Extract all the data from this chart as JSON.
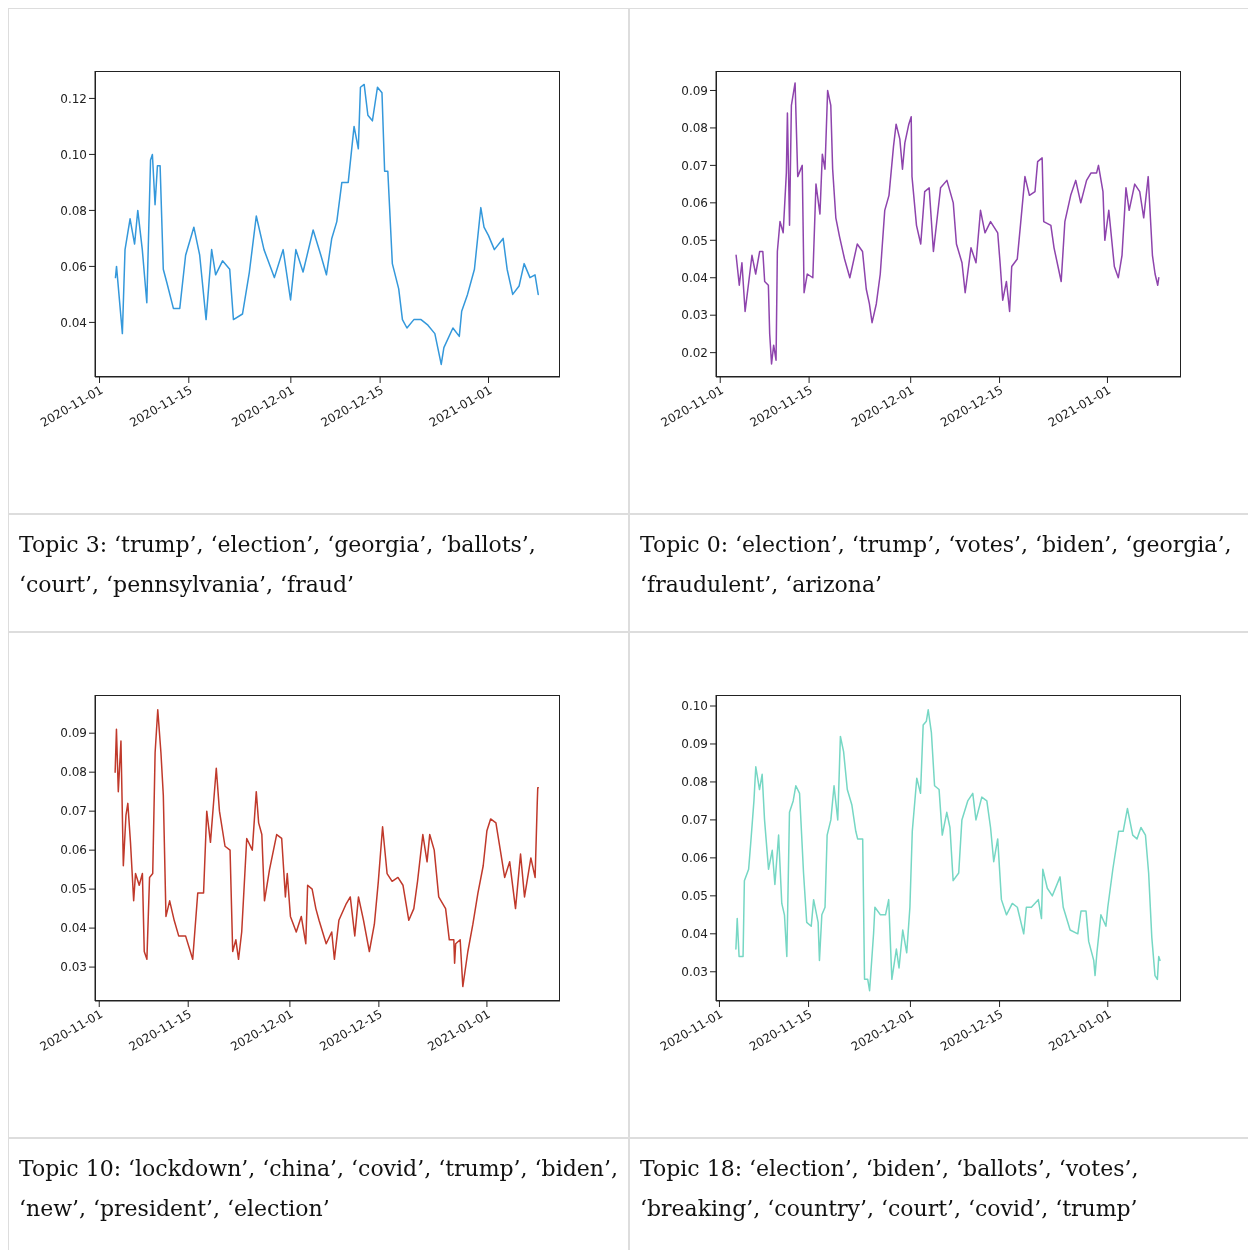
{
  "chart_data": [
    {
      "type": "line",
      "annotations": [
        "Topic 3: ‘trump’, ‘election’, ‘georgia’, ‘ballots’, ‘court’, ‘pennsylvania’, ‘fraud’"
      ],
      "xlim": [
        "2020-10-31T07:00",
        "2021-01-12T05:00"
      ],
      "xticks": [
        "2020-11-01",
        "2020-11-15",
        "2020-12-01",
        "2020-12-15",
        "2021-01-01"
      ],
      "ylim": [
        0.0205,
        0.1298
      ],
      "yticks": [
        0.04,
        0.06,
        0.08,
        {
          "value": 0.1,
          "label": "0.10"
        },
        0.12
      ],
      "x": [
        "2020-11-03T12:00",
        "2020-11-03T16:00",
        "2020-11-04T14:00",
        "2020-11-05T00:00",
        "2020-11-05T19:00",
        "2020-11-06T12:00",
        "2020-11-07T00:00",
        "2020-11-07T17:00",
        "2020-11-08T10:00",
        "2020-11-09T00:00",
        "2020-11-09T07:00",
        "2020-11-09T17:00",
        "2020-11-10T02:00",
        "2020-11-10T12:00",
        "2020-11-11T00:00",
        "2020-11-11T14:00",
        "2020-11-12T14:00",
        "2020-11-13T14:00",
        "2020-11-14T12:00",
        "2020-11-15T19:00",
        "2020-11-16T17:00",
        "2020-11-17T17:00",
        "2020-11-18T14:00",
        "2020-11-19T05:00",
        "2020-11-20T07:00",
        "2020-11-21T10:00",
        "2020-11-22T00:00",
        "2020-11-23T10:00",
        "2020-11-24T12:00",
        "2020-11-25T14:00",
        "2020-11-26T19:00",
        "2020-11-28T10:00",
        "2020-11-29T19:00",
        "2020-11-30T23:00",
        "2020-12-01T19:00",
        "2020-12-02T22:00",
        "2020-12-04T12:00",
        "2020-12-05T17:00",
        "2020-12-06T14:00",
        "2020-12-07T10:00",
        "2020-12-08T05:00",
        "2020-12-09T00:00",
        "2020-12-10T00:00",
        "2020-12-10T22:00",
        "2020-12-11T14:00",
        "2020-12-11T22:00",
        "2020-12-12T12:00",
        "2020-12-13T02:00",
        "2020-12-13T19:00",
        "2020-12-14T14:00",
        "2020-12-15T07:00",
        "2020-12-15T17:00",
        "2020-12-16T05:00",
        "2020-12-16T22:00",
        "2020-12-17T22:00",
        "2020-12-18T12:00",
        "2020-12-19T05:00",
        "2020-12-20T07:00",
        "2020-12-21T10:00",
        "2020-12-22T12:00",
        "2020-12-23T14:00",
        "2020-12-24T14:00",
        "2020-12-25T00:00",
        "2020-12-26T10:00",
        "2020-12-27T10:00",
        "2020-12-27T19:00",
        "2020-12-28T17:00",
        "2020-12-29T19:00",
        "2020-12-30T19:00",
        "2020-12-31T07:00",
        "2021-01-01T00:00",
        "2021-01-01T22:00",
        "2021-01-03T07:00",
        "2021-01-03T22:00",
        "2021-01-04T19:00",
        "2021-01-05T19:00",
        "2021-01-06T14:00",
        "2021-01-07T12:00",
        "2021-01-08T07:00",
        "2021-01-08T19:00"
      ],
      "series": [
        {
          "color": "#3498db",
          "values": [
            0.056,
            0.06,
            0.036,
            0.066,
            0.077,
            0.068,
            0.08,
            0.066,
            0.047,
            0.098,
            0.1,
            0.082,
            0.096,
            0.096,
            0.059,
            0.054,
            0.045,
            0.045,
            0.064,
            0.074,
            0.064,
            0.041,
            0.066,
            0.057,
            0.062,
            0.059,
            0.041,
            0.043,
            0.058,
            0.078,
            0.066,
            0.056,
            0.066,
            0.048,
            0.066,
            0.058,
            0.073,
            0.064,
            0.057,
            0.07,
            0.076,
            0.09,
            0.09,
            0.11,
            0.102,
            0.124,
            0.125,
            0.114,
            0.112,
            0.124,
            0.122,
            0.094,
            0.094,
            0.061,
            0.052,
            0.041,
            0.038,
            0.041,
            0.041,
            0.039,
            0.036,
            0.025,
            0.031,
            0.038,
            0.035,
            0.044,
            0.05,
            0.059,
            0.081,
            0.074,
            0.071,
            0.066,
            0.07,
            0.059,
            0.05,
            0.053,
            0.061,
            0.056,
            0.057,
            0.05
          ]
        }
      ]
    },
    {
      "type": "line",
      "annotations": [
        "Topic 0: ‘election’, ‘trump’, ‘votes’, ‘biden’, ‘georgia’, ‘fraudulent’, ‘arizona’"
      ],
      "xlim": [
        "2020-10-31T08:00",
        "2021-01-12T14:00"
      ],
      "xticks": [
        "2020-11-01",
        "2020-11-15",
        "2020-12-01",
        "2020-12-15",
        "2021-01-01"
      ],
      "ylim": [
        0.0135,
        0.0952
      ],
      "yticks": [
        0.02,
        0.03,
        0.04,
        0.05,
        0.06,
        0.07,
        0.08,
        0.09
      ],
      "x": [
        "2020-11-03T12:00",
        "2020-11-04T00:00",
        "2020-11-04T10:00",
        "2020-11-04T22:00",
        "2020-11-05T12:00",
        "2020-11-06T00:00",
        "2020-11-06T14:00",
        "2020-11-07T05:00",
        "2020-11-07T17:00",
        "2020-11-08T00:00",
        "2020-11-08T14:00",
        "2020-11-08T19:00",
        "2020-11-09T02:00",
        "2020-11-09T10:00",
        "2020-11-09T19:00",
        "2020-11-10T00:00",
        "2020-11-10T10:00",
        "2020-11-10T22:00",
        "2020-11-11T10:00",
        "2020-11-11T14:00",
        "2020-11-11T22:00",
        "2020-11-12T05:00",
        "2020-11-12T19:00",
        "2020-11-13T05:00",
        "2020-11-13T22:00",
        "2020-11-14T05:00",
        "2020-11-14T17:00",
        "2020-11-15T14:00",
        "2020-11-16T02:00",
        "2020-11-16T17:00",
        "2020-11-17T02:00",
        "2020-11-17T12:00",
        "2020-11-17T22:00",
        "2020-11-18T10:00",
        "2020-11-18T17:00",
        "2020-11-19T05:00",
        "2020-11-19T19:00",
        "2020-11-20T14:00",
        "2020-11-21T10:00",
        "2020-11-22T14:00",
        "2020-11-23T10:00",
        "2020-11-24T00:00",
        "2020-11-24T12:00",
        "2020-11-24T22:00",
        "2020-11-25T14:00",
        "2020-11-26T05:00",
        "2020-11-26T22:00",
        "2020-11-27T14:00",
        "2020-11-28T07:00",
        "2020-11-28T17:00",
        "2020-11-29T07:00",
        "2020-11-29T17:00",
        "2020-11-30T02:00",
        "2020-11-30T17:00",
        "2020-12-01T02:00",
        "2020-12-01T05:00",
        "2020-12-01T22:00",
        "2020-12-02T14:00",
        "2020-12-03T05:00",
        "2020-12-03T22:00",
        "2020-12-04T14:00",
        "2020-12-05T17:00",
        "2020-12-06T17:00",
        "2020-12-07T17:00",
        "2020-12-08T05:00",
        "2020-12-09T02:00",
        "2020-12-09T14:00",
        "2020-12-10T12:00",
        "2020-12-11T07:00",
        "2020-12-12T00:00",
        "2020-12-12T17:00",
        "2020-12-13T14:00",
        "2020-12-14T17:00",
        "2020-12-15T02:00",
        "2020-12-15T12:00",
        "2020-12-16T02:00",
        "2020-12-16T14:00",
        "2020-12-16T22:00",
        "2020-12-17T19:00",
        "2020-12-18T07:00",
        "2020-12-19T00:00",
        "2020-12-19T17:00",
        "2020-12-20T14:00",
        "2020-12-21T00:00",
        "2020-12-21T17:00",
        "2020-12-21T23:00",
        "2020-12-23T02:00",
        "2020-12-23T14:00",
        "2020-12-24T17:00",
        "2020-12-25T07:00",
        "2020-12-26T05:00",
        "2020-12-27T00:00",
        "2020-12-27T19:00",
        "2020-12-28T17:00",
        "2020-12-29T10:00",
        "2020-12-30T07:00",
        "2020-12-30T14:00",
        "2020-12-31T07:00",
        "2020-12-31T14:00",
        "2021-01-01T05:00",
        "2021-01-02T02:00",
        "2021-01-02T17:00",
        "2021-01-03T07:00",
        "2021-01-03T22:00",
        "2021-01-04T10:00",
        "2021-01-05T07:00",
        "2021-01-06T02:00",
        "2021-01-06T17:00",
        "2021-01-07T10:00",
        "2021-01-08T02:00",
        "2021-01-08T12:00",
        "2021-01-08T22:00",
        "2021-01-09T02:00"
      ],
      "series": [
        {
          "color": "#8e44ad",
          "values": [
            0.046,
            0.038,
            0.044,
            0.031,
            0.039,
            0.046,
            0.041,
            0.047,
            0.047,
            0.039,
            0.038,
            0.025,
            0.017,
            0.022,
            0.018,
            0.047,
            0.055,
            0.052,
            0.068,
            0.084,
            0.054,
            0.086,
            0.092,
            0.067,
            0.07,
            0.036,
            0.041,
            0.04,
            0.065,
            0.057,
            0.073,
            0.069,
            0.09,
            0.086,
            0.069,
            0.056,
            0.051,
            0.045,
            0.04,
            0.049,
            0.047,
            0.037,
            0.033,
            0.028,
            0.033,
            0.041,
            0.058,
            0.062,
            0.075,
            0.081,
            0.077,
            0.069,
            0.076,
            0.081,
            0.083,
            0.067,
            0.054,
            0.049,
            0.063,
            0.064,
            0.047,
            0.064,
            0.066,
            0.06,
            0.049,
            0.044,
            0.036,
            0.048,
            0.044,
            0.058,
            0.052,
            0.055,
            0.052,
            0.044,
            0.034,
            0.039,
            0.031,
            0.043,
            0.045,
            0.054,
            0.067,
            0.062,
            0.063,
            0.071,
            0.072,
            0.055,
            0.054,
            0.048,
            0.039,
            0.055,
            0.062,
            0.066,
            0.06,
            0.066,
            0.068,
            0.068,
            0.07,
            0.063,
            0.05,
            0.058,
            0.043,
            0.04,
            0.046,
            0.064,
            0.058,
            0.065,
            0.063,
            0.056,
            0.067,
            0.046,
            0.041,
            0.038,
            0.04
          ]
        }
      ]
    },
    {
      "type": "line",
      "annotations": [
        "Topic 10: ‘lockdown’, ‘china’, ‘covid’, ‘trump’, ‘biden’, ‘new’, ‘president’, ‘election’"
      ],
      "xlim": [
        "2020-10-31T08:00",
        "2021-01-12T12:00"
      ],
      "xticks": [
        "2020-11-01",
        "2020-11-15",
        "2020-12-01",
        "2020-12-15",
        "2021-01-01"
      ],
      "ylim": [
        0.0213,
        0.0998
      ],
      "yticks": [
        0.03,
        0.04,
        0.05,
        0.06,
        0.07,
        0.08,
        0.09
      ],
      "x": [
        "2020-11-03T12:00",
        "2020-11-03T17:00",
        "2020-11-04T00:00",
        "2020-11-04T10:00",
        "2020-11-04T19:00",
        "2020-11-05T05:00",
        "2020-11-05T12:00",
        "2020-11-05T22:00",
        "2020-11-06T10:00",
        "2020-11-06T17:00",
        "2020-11-07T07:00",
        "2020-11-07T19:00",
        "2020-11-08T02:00",
        "2020-11-08T12:00",
        "2020-11-08T22:00",
        "2020-11-09T10:00",
        "2020-11-09T19:00",
        "2020-11-10T05:00",
        "2020-11-10T17:00",
        "2020-11-11T02:00",
        "2020-11-11T12:00",
        "2020-11-12T02:00",
        "2020-11-12T19:00",
        "2020-11-13T12:00",
        "2020-11-14T14:00",
        "2020-11-15T17:00",
        "2020-11-16T12:00",
        "2020-11-17T10:00",
        "2020-11-17T22:00",
        "2020-11-18T12:00",
        "2020-11-19T10:00",
        "2020-11-19T22:00",
        "2020-11-20T19:00",
        "2020-11-21T14:00",
        "2020-11-22T00:00",
        "2020-11-22T12:00",
        "2020-11-22T22:00",
        "2020-11-23T10:00",
        "2020-11-24T05:00",
        "2020-11-25T02:00",
        "2020-11-25T17:00",
        "2020-11-26T02:00",
        "2020-11-26T14:00",
        "2020-11-27T00:00",
        "2020-11-27T19:00",
        "2020-11-28T22:00",
        "2020-11-29T17:00",
        "2020-11-30T07:00",
        "2020-11-30T14:00",
        "2020-12-01T02:00",
        "2020-12-02T00:00",
        "2020-12-02T19:00",
        "2020-12-03T12:00",
        "2020-12-03T19:00",
        "2020-12-04T12:00",
        "2020-12-05T02:00",
        "2020-12-05T14:00",
        "2020-12-06T17:00",
        "2020-12-07T14:00",
        "2020-12-08T00:00",
        "2020-12-08T17:00",
        "2020-12-09T19:00",
        "2020-12-10T12:00",
        "2020-12-11T05:00",
        "2020-12-11T19:00",
        "2020-12-12T14:00",
        "2020-12-13T12:00",
        "2020-12-14T07:00",
        "2020-12-14T22:00",
        "2020-12-15T14:00",
        "2020-12-16T07:00",
        "2020-12-17T02:00",
        "2020-12-18T00:00",
        "2020-12-18T19:00",
        "2020-12-19T17:00",
        "2020-12-20T12:00",
        "2020-12-21T02:00",
        "2020-12-21T22:00",
        "2020-12-22T14:00",
        "2020-12-23T00:00",
        "2020-12-23T17:00",
        "2020-12-24T10:00",
        "2020-12-25T12:00",
        "2020-12-26T02:00",
        "2020-12-26T19:00",
        "2020-12-26T22:00",
        "2020-12-27T02:00",
        "2020-12-27T19:00",
        "2020-12-28T05:00",
        "2020-12-29T00:00",
        "2020-12-29T19:00",
        "2020-12-30T14:00",
        "2020-12-31T10:00",
        "2021-01-01T00:00",
        "2021-01-01T14:00",
        "2021-01-02T10:00",
        "2021-01-03T05:00",
        "2021-01-03T19:00",
        "2021-01-04T14:00",
        "2021-01-05T12:00",
        "2021-01-06T07:00",
        "2021-01-06T22:00",
        "2021-01-07T22:00",
        "2021-01-08T14:00",
        "2021-01-08T22:00",
        "2021-01-09T00:00",
        "2021-01-09T02:00"
      ],
      "series": [
        {
          "color": "#c0392b",
          "values": [
            0.08,
            0.091,
            0.075,
            0.088,
            0.056,
            0.069,
            0.072,
            0.062,
            0.047,
            0.054,
            0.051,
            0.054,
            0.034,
            0.032,
            0.053,
            0.054,
            0.085,
            0.096,
            0.085,
            0.074,
            0.043,
            0.047,
            0.042,
            0.038,
            0.038,
            0.032,
            0.049,
            0.049,
            0.07,
            0.062,
            0.081,
            0.07,
            0.061,
            0.06,
            0.034,
            0.037,
            0.032,
            0.039,
            0.063,
            0.06,
            0.075,
            0.067,
            0.064,
            0.047,
            0.055,
            0.064,
            0.063,
            0.048,
            0.054,
            0.043,
            0.039,
            0.043,
            0.036,
            0.051,
            0.05,
            0.045,
            0.042,
            0.036,
            0.039,
            0.032,
            0.042,
            0.046,
            0.048,
            0.038,
            0.048,
            0.042,
            0.034,
            0.041,
            0.052,
            0.066,
            0.054,
            0.052,
            0.053,
            0.051,
            0.042,
            0.045,
            0.052,
            0.064,
            0.057,
            0.064,
            0.06,
            0.048,
            0.045,
            0.037,
            0.037,
            0.031,
            0.036,
            0.037,
            0.025,
            0.034,
            0.041,
            0.049,
            0.056,
            0.065,
            0.068,
            0.067,
            0.059,
            0.053,
            0.057,
            0.045,
            0.059,
            0.048,
            0.058,
            0.053,
            0.072,
            0.076,
            0.076
          ]
        }
      ]
    },
    {
      "type": "line",
      "annotations": [
        "Topic 18: ‘election’, ‘biden’, ‘ballots’, ‘votes’, ‘breaking’, ‘country’, ‘court’, ‘covid’, ‘trump’"
      ],
      "xlim": [
        "2020-10-31T11:00",
        "2021-01-12T12:00"
      ],
      "xticks": [
        "2020-11-01",
        "2020-11-15",
        "2020-12-01",
        "2020-12-15",
        "2021-01-01"
      ],
      "ylim": [
        0.0223,
        0.1029
      ],
      "yticks": [
        0.03,
        0.04,
        0.05,
        0.06,
        0.07,
        0.08,
        0.09,
        {
          "value": 0.1,
          "label": "0.10"
        }
      ],
      "x": [
        "2020-11-03T14:00",
        "2020-11-03T19:00",
        "2020-11-04T02:00",
        "2020-11-04T17:00",
        "2020-11-04T22:00",
        "2020-11-05T14:00",
        "2020-11-05T22:00",
        "2020-11-06T10:00",
        "2020-11-06T17:00",
        "2020-11-07T07:00",
        "2020-11-07T17:00",
        "2020-11-08T02:00",
        "2020-11-08T17:00",
        "2020-11-09T07:00",
        "2020-11-09T17:00",
        "2020-11-10T07:00",
        "2020-11-10T19:00",
        "2020-11-11T05:00",
        "2020-11-11T14:00",
        "2020-11-12T00:00",
        "2020-11-12T14:00",
        "2020-11-13T00:00",
        "2020-11-13T14:00",
        "2020-11-14T05:00",
        "2020-11-14T17:00",
        "2020-11-15T10:00",
        "2020-11-15T19:00",
        "2020-11-16T12:00",
        "2020-11-16T17:00",
        "2020-11-17T02:00",
        "2020-11-17T14:00",
        "2020-11-17T22:00",
        "2020-11-18T12:00",
        "2020-11-19T00:00",
        "2020-11-19T14:00",
        "2020-11-20T00:00",
        "2020-11-20T12:00",
        "2020-11-21T02:00",
        "2020-11-21T19:00",
        "2020-11-22T10:00",
        "2020-11-22T17:00",
        "2020-11-23T12:00",
        "2020-11-23T19:00",
        "2020-11-24T07:00",
        "2020-11-24T14:00",
        "2020-11-25T05:00",
        "2020-11-25T10:00",
        "2020-11-26T07:00",
        "2020-11-27T02:00",
        "2020-11-27T14:00",
        "2020-11-28T02:00",
        "2020-11-28T19:00",
        "2020-11-29T05:00",
        "2020-11-29T19:00",
        "2020-11-30T10:00",
        "2020-11-30T22:00",
        "2020-12-01T07:00",
        "2020-12-02T00:00",
        "2020-12-02T14:00",
        "2020-12-03T00:00",
        "2020-12-03T12:00",
        "2020-12-03T19:00",
        "2020-12-04T07:00",
        "2020-12-04T19:00",
        "2020-12-05T12:00",
        "2020-12-06T00:00",
        "2020-12-06T17:00",
        "2020-12-07T05:00",
        "2020-12-07T17:00",
        "2020-12-08T14:00",
        "2020-12-09T02:00",
        "2020-12-10T00:00",
        "2020-12-10T19:00",
        "2020-12-11T07:00",
        "2020-12-12T05:00",
        "2020-12-13T00:00",
        "2020-12-13T14:00",
        "2020-12-14T02:00",
        "2020-12-14T17:00",
        "2020-12-15T07:00",
        "2020-12-16T02:00",
        "2020-12-17T00:00",
        "2020-12-17T19:00",
        "2020-12-18T19:00",
        "2020-12-19T05:00",
        "2020-12-20T00:00",
        "2020-12-21T02:00",
        "2020-12-21T14:00",
        "2020-12-21T19:00",
        "2020-12-22T12:00",
        "2020-12-23T07:00",
        "2020-12-24T12:00",
        "2020-12-25T00:00",
        "2020-12-26T02:00",
        "2020-12-27T07:00",
        "2020-12-27T19:00",
        "2020-12-28T14:00",
        "2020-12-29T00:00",
        "2020-12-29T19:00",
        "2020-12-30T00:00",
        "2020-12-30T07:00",
        "2020-12-30T22:00",
        "2020-12-31T17:00",
        "2021-01-01T00:00",
        "2021-01-01T19:00",
        "2021-01-02T17:00",
        "2021-01-03T10:00",
        "2021-01-04T02:00",
        "2021-01-04T22:00",
        "2021-01-05T14:00",
        "2021-01-06T05:00",
        "2021-01-06T22:00",
        "2021-01-07T10:00",
        "2021-01-07T22:00",
        "2021-01-08T10:00",
        "2021-01-08T19:00",
        "2021-01-09T00:00",
        "2021-01-09T05:00"
      ],
      "series": [
        {
          "color": "#76d7c4",
          "values": [
            0.036,
            0.044,
            0.034,
            0.034,
            0.054,
            0.057,
            0.064,
            0.075,
            0.084,
            0.078,
            0.082,
            0.07,
            0.057,
            0.062,
            0.053,
            0.066,
            0.048,
            0.045,
            0.034,
            0.072,
            0.075,
            0.079,
            0.077,
            0.056,
            0.043,
            0.042,
            0.049,
            0.043,
            0.033,
            0.045,
            0.047,
            0.066,
            0.07,
            0.079,
            0.07,
            0.092,
            0.088,
            0.078,
            0.074,
            0.067,
            0.065,
            0.065,
            0.028,
            0.028,
            0.025,
            0.04,
            0.047,
            0.045,
            0.045,
            0.049,
            0.028,
            0.036,
            0.031,
            0.041,
            0.035,
            0.047,
            0.067,
            0.081,
            0.077,
            0.095,
            0.096,
            0.099,
            0.093,
            0.079,
            0.078,
            0.066,
            0.072,
            0.068,
            0.054,
            0.056,
            0.07,
            0.075,
            0.077,
            0.07,
            0.076,
            0.075,
            0.068,
            0.059,
            0.065,
            0.049,
            0.045,
            0.048,
            0.047,
            0.04,
            0.047,
            0.047,
            0.049,
            0.044,
            0.057,
            0.052,
            0.05,
            0.055,
            0.047,
            0.041,
            0.04,
            0.046,
            0.046,
            0.038,
            0.033,
            0.029,
            0.035,
            0.045,
            0.042,
            0.047,
            0.057,
            0.067,
            0.067,
            0.073,
            0.066,
            0.065,
            0.068,
            0.066,
            0.056,
            0.039,
            0.029,
            0.028,
            0.034,
            0.033
          ]
        }
      ]
    }
  ]
}
